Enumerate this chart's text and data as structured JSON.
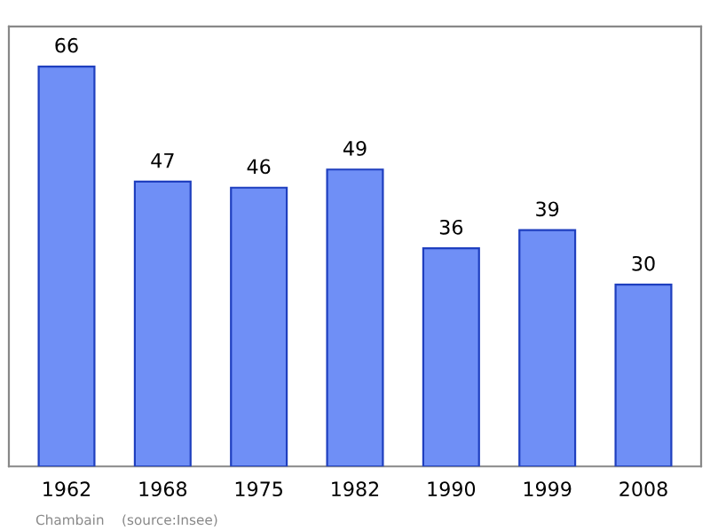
{
  "chart_data": {
    "type": "bar",
    "categories": [
      "1962",
      "1968",
      "1975",
      "1982",
      "1990",
      "1999",
      "2008"
    ],
    "values": [
      66,
      47,
      46,
      49,
      36,
      39,
      30
    ],
    "color": "#6f8ff6",
    "data_labels": true,
    "grid": false,
    "legend": false,
    "annotations": [
      "Chambain    (source:Insee)"
    ]
  }
}
